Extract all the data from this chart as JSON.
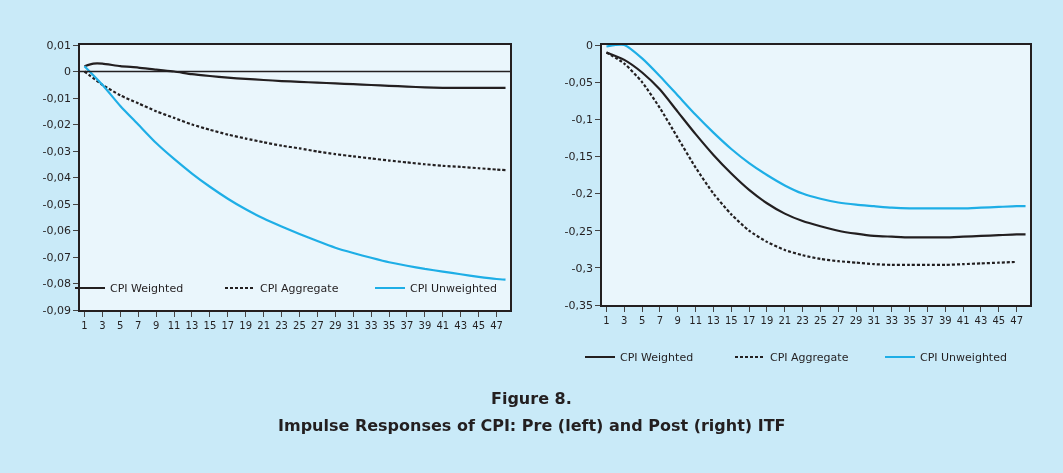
{
  "chart_data": [
    {
      "type": "line",
      "legend": "bottom",
      "grid": false,
      "marker": "none",
      "xlim": [
        0.5,
        48.5
      ],
      "xticks": [
        1,
        3,
        5,
        7,
        9,
        11,
        13,
        15,
        17,
        19,
        21,
        23,
        25,
        27,
        29,
        31,
        33,
        35,
        37,
        39,
        41,
        43,
        45,
        47
      ],
      "ylim": [
        -0.09,
        0.01
      ],
      "yticks": [
        {
          "value": 0.01,
          "label": "0,01"
        },
        0,
        {
          "value": -0.01,
          "label": "-0,01"
        },
        {
          "value": -0.02,
          "label": "-0,02"
        },
        {
          "value": -0.03,
          "label": "-0,03"
        },
        {
          "value": -0.04,
          "label": "-0,04"
        },
        {
          "value": -0.05,
          "label": "-0,05"
        },
        {
          "value": -0.06,
          "label": "-0,06"
        },
        {
          "value": -0.07,
          "label": "-0,07"
        },
        {
          "value": -0.08,
          "label": "-0,08"
        },
        {
          "value": -0.09,
          "label": "-0,09"
        }
      ],
      "ref_lines": [
        {
          "axis": "y",
          "value": 0,
          "color": "#231f20"
        }
      ],
      "annotations": [
        "Figure 8.",
        "Impulse Responses of CPI: Pre (left) and Post (right) ITF"
      ],
      "series": [
        {
          "name": "CPI Weighted",
          "color": "#231f20",
          "line_style": "solid",
          "x": [
            1,
            2,
            3,
            5,
            7,
            9,
            11,
            13,
            15,
            17,
            19,
            21,
            23,
            25,
            27,
            29,
            31,
            33,
            35,
            37,
            39,
            41,
            43,
            45,
            47,
            48
          ],
          "values": [
            0.002,
            0.003,
            0.003,
            0.002,
            0.0015,
            0.0007,
            0,
            -0.001,
            -0.0017,
            -0.0023,
            -0.0028,
            -0.0032,
            -0.0036,
            -0.0039,
            -0.0042,
            -0.0045,
            -0.0048,
            -0.0051,
            -0.0054,
            -0.0057,
            -0.006,
            -0.0062,
            -0.0062,
            -0.0062,
            -0.0062,
            -0.0062
          ]
        },
        {
          "name": "CPI Aggregate",
          "color": "#231f20",
          "line_style": "dotted",
          "x": [
            1,
            3,
            5,
            7,
            9,
            11,
            13,
            15,
            17,
            19,
            21,
            23,
            25,
            27,
            29,
            31,
            33,
            35,
            37,
            39,
            41,
            43,
            45,
            47,
            48
          ],
          "values": [
            0,
            -0.005,
            -0.009,
            -0.012,
            -0.015,
            -0.0175,
            -0.02,
            -0.022,
            -0.0238,
            -0.0253,
            -0.0267,
            -0.028,
            -0.029,
            -0.0302,
            -0.0312,
            -0.032,
            -0.0328,
            -0.0336,
            -0.0343,
            -0.035,
            -0.0356,
            -0.036,
            -0.0365,
            -0.037,
            -0.0372
          ]
        },
        {
          "name": "CPI Unweighted",
          "color": "#1eaee6",
          "line_style": "solid",
          "x": [
            1,
            3,
            5,
            7,
            9,
            11,
            13,
            15,
            17,
            19,
            21,
            23,
            25,
            27,
            29,
            31,
            33,
            35,
            37,
            39,
            41,
            43,
            45,
            47,
            48
          ],
          "values": [
            0.002,
            -0.005,
            -0.013,
            -0.02,
            -0.027,
            -0.033,
            -0.0385,
            -0.0435,
            -0.048,
            -0.052,
            -0.0555,
            -0.0585,
            -0.0613,
            -0.064,
            -0.0665,
            -0.0685,
            -0.0703,
            -0.072,
            -0.0733,
            -0.0745,
            -0.0755,
            -0.0765,
            -0.0775,
            -0.0783,
            -0.0785
          ]
        }
      ]
    },
    {
      "type": "line",
      "legend": "bottom",
      "grid": false,
      "marker": "none",
      "xlim": [
        0.5,
        48.5
      ],
      "xticks": [
        1,
        3,
        5,
        7,
        9,
        11,
        13,
        15,
        17,
        19,
        21,
        23,
        25,
        27,
        29,
        31,
        33,
        35,
        37,
        39,
        41,
        43,
        45,
        47
      ],
      "ylim": [
        -0.35,
        0
      ],
      "yticks": [
        0,
        {
          "value": -0.05,
          "label": "-0,05"
        },
        {
          "value": -0.1,
          "label": "-0,1"
        },
        {
          "value": -0.15,
          "label": "-0,15"
        },
        {
          "value": -0.2,
          "label": "-0,2"
        },
        {
          "value": -0.25,
          "label": "-0,25"
        },
        {
          "value": -0.3,
          "label": "-0,3"
        },
        {
          "value": -0.35,
          "label": "-0,35"
        }
      ],
      "series": [
        {
          "name": "CPI Weighted",
          "color": "#231f20",
          "line_style": "solid",
          "x": [
            1,
            3,
            5,
            7,
            9,
            11,
            13,
            15,
            17,
            19,
            21,
            23,
            25,
            27,
            29,
            31,
            33,
            35,
            37,
            39,
            41,
            43,
            45,
            47,
            48
          ],
          "values": [
            -0.01,
            -0.02,
            -0.037,
            -0.06,
            -0.09,
            -0.12,
            -0.148,
            -0.173,
            -0.195,
            -0.213,
            -0.227,
            -0.237,
            -0.244,
            -0.25,
            -0.254,
            -0.257,
            -0.258,
            -0.259,
            -0.259,
            -0.259,
            -0.258,
            -0.257,
            -0.256,
            -0.255,
            -0.255
          ]
        },
        {
          "name": "CPI Aggregate",
          "color": "#231f20",
          "line_style": "dotted",
          "x": [
            1,
            3,
            5,
            7,
            9,
            11,
            13,
            15,
            17,
            19,
            21,
            23,
            25,
            27,
            29,
            31,
            33,
            35,
            37,
            39,
            41,
            43,
            45,
            47
          ],
          "values": [
            -0.01,
            -0.025,
            -0.05,
            -0.085,
            -0.125,
            -0.165,
            -0.2,
            -0.228,
            -0.25,
            -0.265,
            -0.276,
            -0.283,
            -0.288,
            -0.291,
            -0.293,
            -0.295,
            -0.296,
            -0.296,
            -0.296,
            -0.296,
            -0.295,
            -0.294,
            -0.293,
            -0.292
          ]
        },
        {
          "name": "CPI Unweighted",
          "color": "#1eaee6",
          "line_style": "solid",
          "x": [
            1,
            2,
            3,
            5,
            7,
            9,
            11,
            13,
            15,
            17,
            19,
            21,
            23,
            25,
            27,
            29,
            31,
            33,
            35,
            37,
            39,
            41,
            43,
            45,
            47,
            48
          ],
          "values": [
            -0.002,
            0,
            0,
            -0.018,
            -0.042,
            -0.068,
            -0.094,
            -0.118,
            -0.14,
            -0.159,
            -0.175,
            -0.189,
            -0.2,
            -0.207,
            -0.212,
            -0.215,
            -0.217,
            -0.219,
            -0.22,
            -0.22,
            -0.22,
            -0.22,
            -0.219,
            -0.218,
            -0.217,
            -0.217
          ]
        }
      ]
    }
  ]
}
